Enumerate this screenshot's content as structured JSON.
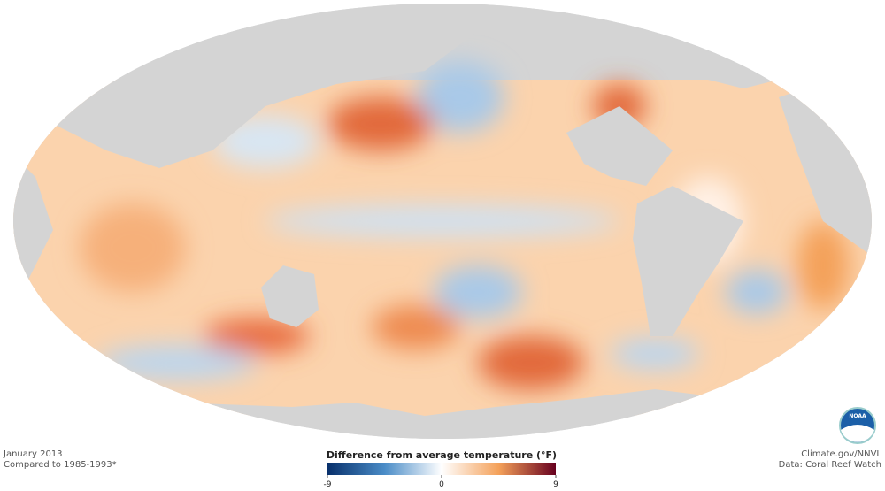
{
  "footer_left": {
    "date": "January 2013",
    "baseline": "Compared to 1985-1993*"
  },
  "footer_right": {
    "credit": "Climate.gov/NNVL",
    "source": "Data: Coral Reef Watch"
  },
  "logo": {
    "text": "NOAA"
  },
  "legend": {
    "title": "Difference from average temperature (°F)",
    "ticks": [
      -9,
      0,
      9
    ],
    "colors": [
      "#08306b",
      "#4a8cc7",
      "#ffffff",
      "#f4a15a",
      "#67001f"
    ]
  }
}
